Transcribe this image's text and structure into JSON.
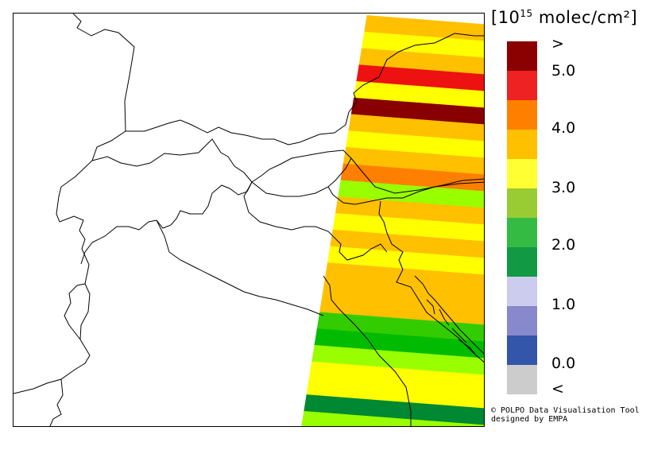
{
  "legend": {
    "title_prefix": "[10",
    "title_exp": "15",
    "title_suffix": " molec/cm²]",
    "labels": [
      ">",
      "5.0",
      "4.0",
      "3.0",
      "2.0",
      "1.0",
      "0.0",
      "<"
    ],
    "colors": [
      "#8b0000",
      "#ee2222",
      "#ff7f00",
      "#ffc000",
      "#ffff33",
      "#99cc33",
      "#33bb44",
      "#119944",
      "#ccccee",
      "#8888cc",
      "#3355aa",
      "#cccccc"
    ]
  },
  "credit": {
    "line1": "© POLPO Data Visualisation Tool",
    "line2": "designed by EMPA"
  },
  "swath_stripe_colors": [
    "#ffc000",
    "#ffff00",
    "#ffc000",
    "#ee1111",
    "#ffff00",
    "#880000",
    "#ffc000",
    "#ffff00",
    "#ffc000",
    "#ff7f00",
    "#99ff00",
    "#ffc000",
    "#ffff00",
    "#ffc000",
    "#ffff00",
    "#ffc000",
    "#ffc000",
    "#ffc000",
    "#33cc00",
    "#00bb00",
    "#99ff00",
    "#ffff00",
    "#ffff00",
    "#008833",
    "#99ff00"
  ]
}
